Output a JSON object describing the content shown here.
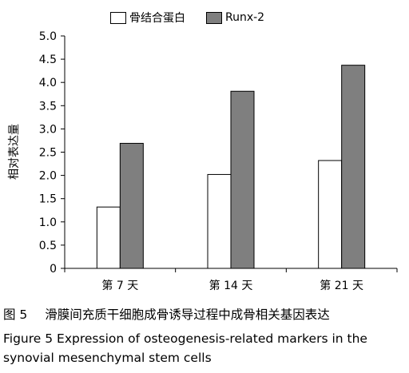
{
  "chart_data": {
    "type": "bar",
    "title": "",
    "xlabel": "",
    "ylabel": "相对表达量",
    "ylim": [
      0,
      5.0
    ],
    "yticks": [
      "0",
      "0.5",
      "1.0",
      "1.5",
      "2.0",
      "2.5",
      "3.0",
      "3.5",
      "4.0",
      "4.5",
      "5.0"
    ],
    "categories": [
      "第 7 天",
      "第 14 天",
      "第 21 天"
    ],
    "series": [
      {
        "name": "骨结合蛋白",
        "values": [
          1.32,
          2.02,
          2.32
        ],
        "color": "#ffffff"
      },
      {
        "name": "Runx-2",
        "values": [
          2.69,
          3.81,
          4.37
        ],
        "color": "#7f7f7f"
      }
    ],
    "legend_position": "top",
    "grid": false
  },
  "caption": {
    "cn_label": "图 5",
    "cn_text": "滑膜间充质干细胞成骨诱导过程中成骨相关基因表达",
    "en_line1": "Figure 5    Expression of osteogenesis-related markers in the",
    "en_line2": "synovial mesenchymal stem cells"
  }
}
